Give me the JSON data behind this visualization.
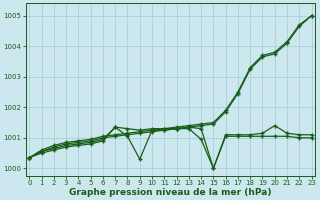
{
  "x": [
    0,
    1,
    2,
    3,
    4,
    5,
    6,
    7,
    8,
    9,
    10,
    11,
    12,
    13,
    14,
    15,
    16,
    17,
    18,
    19,
    20,
    21,
    22,
    23
  ],
  "line1": [
    1000.35,
    1000.6,
    1000.75,
    1000.85,
    1000.9,
    1000.95,
    1001.05,
    1001.1,
    1001.15,
    1001.2,
    1001.25,
    1001.3,
    1001.35,
    1001.4,
    1001.45,
    1001.5,
    1001.9,
    1002.5,
    1003.3,
    1003.7,
    1003.8,
    1004.15,
    1004.7,
    1005.0
  ],
  "line2": [
    1000.35,
    1000.55,
    1000.7,
    1000.8,
    1000.85,
    1000.9,
    1001.0,
    1001.05,
    1001.1,
    1001.15,
    1001.2,
    1001.25,
    1001.3,
    1001.35,
    1001.4,
    1001.45,
    1001.85,
    1002.45,
    1003.25,
    1003.65,
    1003.75,
    1004.1,
    1004.65,
    1005.0
  ],
  "line3": [
    1000.35,
    1000.55,
    1000.65,
    1000.75,
    1000.8,
    1000.85,
    1000.95,
    1001.35,
    1001.3,
    1001.25,
    1001.3,
    1001.3,
    1001.3,
    1001.35,
    1001.3,
    1000.0,
    1001.1,
    1001.1,
    1001.1,
    1001.15,
    1001.4,
    1001.15,
    1001.1,
    1001.1
  ],
  "line4": [
    1000.35,
    1000.5,
    1000.6,
    1000.7,
    1000.75,
    1000.8,
    1000.9,
    1001.35,
    1001.05,
    1000.3,
    1001.25,
    1001.25,
    1001.3,
    1001.3,
    1000.95,
    1000.0,
    1001.05,
    1001.05,
    1001.05,
    1001.05,
    1001.05,
    1001.05,
    1001.0,
    1001.0
  ],
  "ylim": [
    999.75,
    1005.4
  ],
  "yticks": [
    1000,
    1001,
    1002,
    1003,
    1004,
    1005
  ],
  "xticks": [
    0,
    1,
    2,
    3,
    4,
    5,
    6,
    7,
    8,
    9,
    10,
    11,
    12,
    13,
    14,
    15,
    16,
    17,
    18,
    19,
    20,
    21,
    22,
    23
  ],
  "xlim": [
    -0.3,
    23.3
  ],
  "xlabel": "Graphe pression niveau de la mer (hPa)",
  "bg_color": "#cce8ee",
  "grid_color": "#9dccd6",
  "line_color": "#1a5c1a",
  "marker": "+",
  "marker_size": 3.5,
  "marker_edge_width": 1.0,
  "line_width": 0.9,
  "xlabel_fontsize": 6.5,
  "tick_fontsize": 5.0
}
